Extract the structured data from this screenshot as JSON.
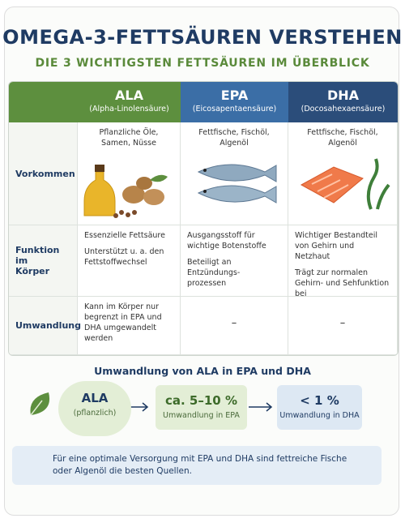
{
  "title": "OMEGA-3-FETTSÄUREN VERSTEHEN",
  "subtitle": "DIE 3 WICHTIGSTEN FETTSÄUREN IM ÜBERBLICK",
  "table": {
    "columns": [
      {
        "name": "ALA",
        "full": "(Alpha-Linolensäure)",
        "color": "#5d8f3e"
      },
      {
        "name": "EPA",
        "full": "(Eicosapentaensäure)",
        "color": "#3b6ea6"
      },
      {
        "name": "DHA",
        "full": "(Docosahexaensäure)",
        "color": "#2b4d7a"
      }
    ],
    "rows": [
      {
        "label": [
          "Vorkommen"
        ],
        "cells": [
          [
            [
              "Pflanzliche Öle,",
              "Samen, Nüsse"
            ]
          ],
          [
            [
              "Fettfische, Fischöl,",
              "Algenöl"
            ]
          ],
          [
            [
              "Fettfische, Fischöl,",
              "Algenöl"
            ]
          ]
        ]
      },
      {
        "label": [
          "Funktion im",
          "Körper"
        ],
        "cells": [
          [
            [
              "Essenzielle Fettsäure"
            ],
            [
              "Unterstützt u. a. den",
              "Fettstoffwechsel"
            ]
          ],
          [
            [
              "Ausgangsstoff für",
              "wichtige Botenstoffe"
            ],
            [
              "Beteiligt an Entzündungs-",
              "prozessen"
            ]
          ],
          [
            [
              "Wichtiger Bestandteil",
              "von Gehirn und Netzhaut"
            ],
            [
              "Trägt zur normalen",
              "Gehirn- und Sehfunktion bei"
            ]
          ]
        ]
      },
      {
        "label": [
          "Umwandlung"
        ],
        "cells": [
          [
            [
              "Kann im Körper nur",
              "begrenzt in EPA und",
              "DHA umgewandelt",
              "werden"
            ]
          ],
          [
            [
              "–"
            ]
          ],
          [
            [
              "–"
            ]
          ]
        ]
      }
    ]
  },
  "conversion": {
    "title": "Umwandlung von ALA in EPA und DHA",
    "source": {
      "name": "ALA",
      "note": "(pflanzlich)"
    },
    "steps": [
      {
        "value": "ca. 5–10 %",
        "label": "Umwandlung in EPA"
      },
      {
        "value": "< 1 %",
        "label": "Umwandlung in DHA"
      }
    ]
  },
  "note": [
    "Für eine optimale Versorgung mit EPA und DHA sind fettreiche Fische",
    "oder Algenöl die besten Quellen."
  ]
}
